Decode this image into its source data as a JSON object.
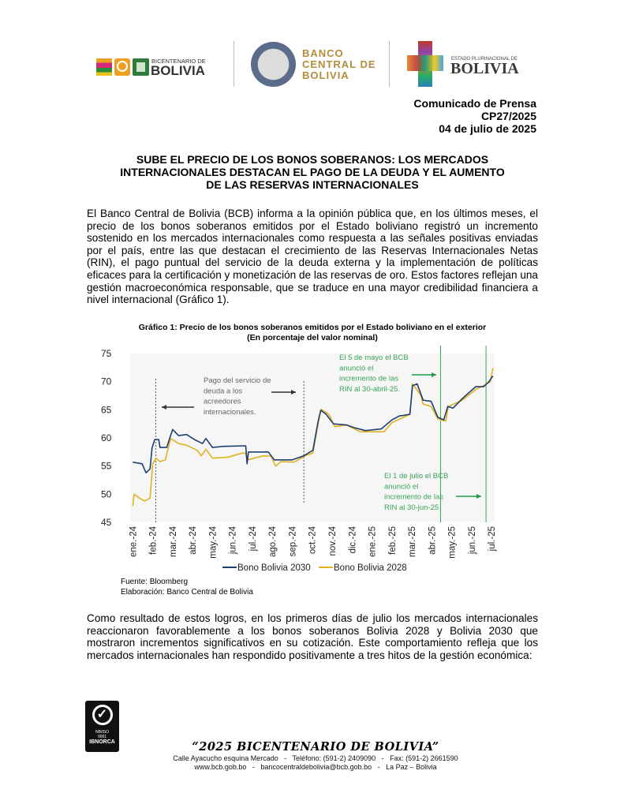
{
  "header": {
    "logo_bicentenario": {
      "small": "BICENTENARIO DE",
      "big": "BOLIVIA"
    },
    "logo_bcb": {
      "line1": "BANCO",
      "line2": "CENTRAL DE",
      "line3": "BOLIVIA"
    },
    "logo_estado": {
      "small": "ESTADO PLURINACIONAL DE",
      "big": "BOLIVIA"
    }
  },
  "press": {
    "label": "Comunicado de Prensa",
    "code": "CP27/2025",
    "date": "04 de julio de 2025"
  },
  "headline": {
    "lines": [
      "SUBE EL PRECIO DE LOS BONOS SOBERANOS: LOS MERCADOS",
      "INTERNACIONALES DESTACAN EL PAGO DE LA DEUDA Y EL AUMENTO",
      "DE LAS RESERVAS INTERNACIONALES"
    ]
  },
  "body": {
    "paragraph1": "El Banco Central de Bolivia (BCB) informa a la opinión pública que, en los últimos meses, el precio de los bonos soberanos emitidos por el Estado boliviano registró un incremento sostenido en los mercados internacionales como respuesta a las señales positivas enviadas por el país, entre las que destacan el crecimiento de las Reservas Internacionales Netas (RIN), el pago puntual del servicio de la deuda externa y la implementación de políticas eficaces para la certificación y monetización de las reservas de oro. Estos factores reflejan una gestión macroeconómica responsable, que se traduce en una mayor credibilidad financiera a nivel internacional (Gráfico 1).",
    "paragraph2": "Como resultado de estos logros, en los primeros días de julio los mercados internacionales reaccionaron favorablemente a los bonos soberanos Bolivia 2028 y Bolivia 2030 que mostraron incrementos significativos en su cotización. Este comportamiento refleja que los mercados internacionales han respondido positivamente a tres hitos de la gestión económica:"
  },
  "chart_data": {
    "type": "line",
    "title": "Gráfico 1: Precio de los bonos soberanos emitidos por el Estado boliviano en el exterior",
    "subtitle": "(En porcentaje del valor nominal)",
    "ylim": [
      45,
      75
    ],
    "yticks": [
      "75",
      "70",
      "65",
      "60",
      "55",
      "50",
      "45"
    ],
    "xticks": [
      "ene.-24",
      "feb.-24",
      "mar.-24",
      "abr.-24",
      "may.-24",
      "jun.-24",
      "jul.-24",
      "ago.-24",
      "sep.-24",
      "oct.-24",
      "nov.-24",
      "dic.-24",
      "ene.-25",
      "feb.-25",
      "mar.-25",
      "abr.-25",
      "may.-25",
      "jun.-25",
      "jul.-25"
    ],
    "grid": false,
    "legend_position": "bottom",
    "series": [
      {
        "name": "Bono Bolivia 2030",
        "color": "#1f3f73",
        "points": [
          [
            "2024-01-01",
            55.7
          ],
          [
            "2024-01-15",
            55.4
          ],
          [
            "2024-01-21",
            53.8
          ],
          [
            "2024-01-27",
            54.5
          ],
          [
            "2024-01-30",
            58.2
          ],
          [
            "2024-02-04",
            59.7
          ],
          [
            "2024-02-10",
            59.7
          ],
          [
            "2024-02-12",
            58.3
          ],
          [
            "2024-02-22",
            58.3
          ],
          [
            "2024-03-01",
            61.5
          ],
          [
            "2024-03-10",
            60.4
          ],
          [
            "2024-03-22",
            60.6
          ],
          [
            "2024-04-04",
            59.7
          ],
          [
            "2024-04-16",
            59.0
          ],
          [
            "2024-04-21",
            59.9
          ],
          [
            "2024-05-01",
            58.3
          ],
          [
            "2024-05-17",
            58.5
          ],
          [
            "2024-06-21",
            58.6
          ],
          [
            "2024-06-23",
            55.4
          ],
          [
            "2024-06-25",
            57.5
          ],
          [
            "2024-07-25",
            57.5
          ],
          [
            "2024-08-04",
            56.1
          ],
          [
            "2024-08-31",
            56.1
          ],
          [
            "2024-09-18",
            56.8
          ],
          [
            "2024-10-02",
            57.8
          ],
          [
            "2024-10-10",
            63.0
          ],
          [
            "2024-10-14",
            64.9
          ],
          [
            "2024-10-22",
            64.2
          ],
          [
            "2024-11-03",
            62.5
          ],
          [
            "2024-11-23",
            62.3
          ],
          [
            "2024-12-05",
            61.8
          ],
          [
            "2024-12-21",
            61.3
          ],
          [
            "2025-01-15",
            61.6
          ],
          [
            "2025-01-31",
            63.2
          ],
          [
            "2025-02-12",
            63.9
          ],
          [
            "2025-02-28",
            64.2
          ],
          [
            "2025-03-02",
            69.3
          ],
          [
            "2025-03-09",
            69.6
          ],
          [
            "2025-03-18",
            66.7
          ],
          [
            "2025-03-30",
            66.5
          ],
          [
            "2025-04-10",
            63.7
          ],
          [
            "2025-04-19",
            63.2
          ],
          [
            "2025-04-25",
            65.6
          ],
          [
            "2025-05-03",
            65.3
          ],
          [
            "2025-05-17",
            67.0
          ],
          [
            "2025-06-07",
            69.1
          ],
          [
            "2025-06-19",
            69.1
          ],
          [
            "2025-06-27",
            70.0
          ],
          [
            "2025-07-03",
            71.0
          ]
        ]
      },
      {
        "name": "Bono Bolivia 2028",
        "color": "#e0b21e",
        "points": [
          [
            "2024-01-01",
            47.9
          ],
          [
            "2024-01-03",
            50.0
          ],
          [
            "2024-01-11",
            49.3
          ],
          [
            "2024-01-19",
            48.8
          ],
          [
            "2024-01-27",
            49.3
          ],
          [
            "2024-01-28",
            50.7
          ],
          [
            "2024-02-01",
            55.4
          ],
          [
            "2024-02-06",
            56.4
          ],
          [
            "2024-02-12",
            55.8
          ],
          [
            "2024-02-20",
            56.1
          ],
          [
            "2024-02-28",
            59.9
          ],
          [
            "2024-03-10",
            59.0
          ],
          [
            "2024-03-22",
            58.7
          ],
          [
            "2024-04-08",
            57.8
          ],
          [
            "2024-04-14",
            56.8
          ],
          [
            "2024-04-21",
            58.0
          ],
          [
            "2024-05-01",
            56.4
          ],
          [
            "2024-05-25",
            56.6
          ],
          [
            "2024-06-15",
            57.3
          ],
          [
            "2024-06-21",
            57.3
          ],
          [
            "2024-06-23",
            56.1
          ],
          [
            "2024-07-17",
            56.8
          ],
          [
            "2024-07-29",
            56.8
          ],
          [
            "2024-08-06",
            55.0
          ],
          [
            "2024-08-14",
            55.8
          ],
          [
            "2024-09-04",
            55.7
          ],
          [
            "2024-09-20",
            56.8
          ],
          [
            "2024-10-02",
            57.3
          ],
          [
            "2024-10-10",
            62.5
          ],
          [
            "2024-10-14",
            65.1
          ],
          [
            "2024-10-26",
            64.2
          ],
          [
            "2024-11-05",
            62.0
          ],
          [
            "2024-11-23",
            62.3
          ],
          [
            "2024-12-13",
            61.1
          ],
          [
            "2025-01-19",
            61.1
          ],
          [
            "2025-01-31",
            62.7
          ],
          [
            "2025-02-28",
            64.2
          ],
          [
            "2025-03-02",
            69.6
          ],
          [
            "2025-03-14",
            67.7
          ],
          [
            "2025-03-18",
            66.0
          ],
          [
            "2025-03-30",
            65.6
          ],
          [
            "2025-04-10",
            63.4
          ],
          [
            "2025-04-22",
            63.0
          ],
          [
            "2025-04-26",
            65.6
          ],
          [
            "2025-05-17",
            66.7
          ],
          [
            "2025-06-07",
            68.6
          ],
          [
            "2025-06-19",
            69.3
          ],
          [
            "2025-06-29",
            70.0
          ],
          [
            "2025-07-03",
            72.4
          ]
        ]
      }
    ],
    "annotations": {
      "debt_payment": [
        "Pago del servicio de",
        "deuda a los",
        "acreedores",
        "internacionales."
      ],
      "may5": [
        "El 5 de mayo el BCB",
        "anunció el",
        "incremento de las",
        "RIN al 30-abril-25."
      ],
      "jul1": [
        "El 1 de julio el BCB",
        "anunció el",
        "incremento de las",
        "RIN al 30-jun-25"
      ],
      "annotation_color": "#3aa35a"
    }
  },
  "chart_source": {
    "fuente": "Fuente: Bloomberg",
    "elaboracion": "Elaboración: Banco Central de Bolivia"
  },
  "footer": {
    "cert": {
      "line1": "NB/ISO",
      "line2": "9001",
      "brand": "IBNORCA"
    },
    "motto": "“2025 BICENTENARIO DE BOLIVIA”",
    "address": "Calle Ayacucho esquina Mercado   -   Teléfono: (591-2) 2409090   -   Fax: (591-2) 2661590",
    "contact": "www.bcb.gob.bo   -   bancocentraldebolivia@bcb.gob.bo   -   La Paz – Bolivia"
  }
}
